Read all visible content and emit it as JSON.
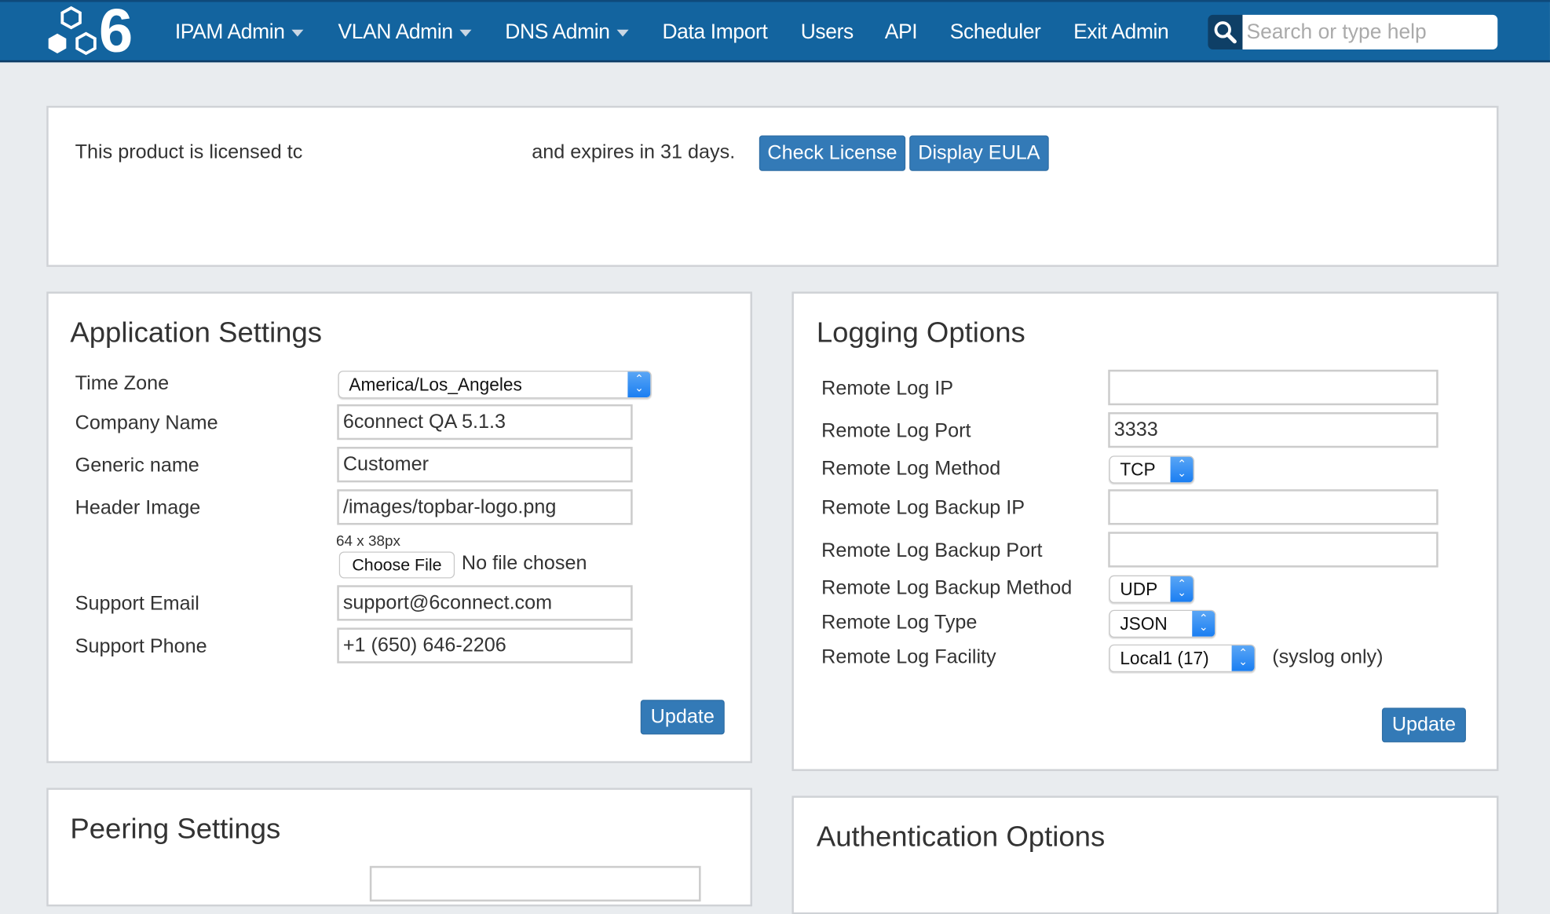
{
  "nav": {
    "logo_text": "6",
    "items": [
      {
        "label": "IPAM Admin",
        "dropdown": true
      },
      {
        "label": "VLAN Admin",
        "dropdown": true
      },
      {
        "label": "DNS Admin",
        "dropdown": true
      },
      {
        "label": "Data Import"
      },
      {
        "label": "Users"
      },
      {
        "label": "API"
      },
      {
        "label": "Scheduler"
      },
      {
        "label": "Exit Admin"
      }
    ],
    "search_placeholder": "Search or type help",
    "search_icon": "magnifier-icon"
  },
  "license": {
    "text_before": "This product is licensed tc",
    "text_after": "and expires in 31 days.",
    "check_license": "Check License",
    "display_eula": "Display EULA"
  },
  "app_settings": {
    "title": "Application Settings",
    "time_zone_label": "Time Zone",
    "time_zone_value": "America/Los_Angeles",
    "company_name_label": "Company Name",
    "company_name_value": "6connect QA 5.1.3",
    "generic_name_label": "Generic name",
    "generic_name_value": "Customer",
    "header_image_label": "Header Image",
    "header_image_value": "/images/topbar-logo.png",
    "image_hint": "64 x 38px",
    "choose_file": "Choose File",
    "no_file": "No file chosen",
    "support_email_label": "Support Email",
    "support_email_value": "support@6connect.com",
    "support_phone_label": "Support Phone",
    "support_phone_value": "+1 (650) 646-2206",
    "update": "Update"
  },
  "logging": {
    "title": "Logging Options",
    "remote_log_ip_label": "Remote Log IP",
    "remote_log_ip_value": "",
    "remote_log_port_label": "Remote Log Port",
    "remote_log_port_value": "3333",
    "remote_log_method_label": "Remote Log Method",
    "remote_log_method_value": "TCP",
    "backup_ip_label": "Remote Log Backup IP",
    "backup_ip_value": "",
    "backup_port_label": "Remote Log Backup Port",
    "backup_port_value": "",
    "backup_method_label": "Remote Log Backup Method",
    "backup_method_value": "UDP",
    "log_type_label": "Remote Log Type",
    "log_type_value": "JSON",
    "facility_label": "Remote Log Facility",
    "facility_value": "Local1 (17)",
    "facility_note": "(syslog only)",
    "update": "Update"
  },
  "peering": {
    "title": "Peering Settings"
  },
  "auth": {
    "title": "Authentication Options"
  },
  "colors": {
    "navbar": "#13649f",
    "button": "#337ab7",
    "background": "#e9ecef"
  }
}
